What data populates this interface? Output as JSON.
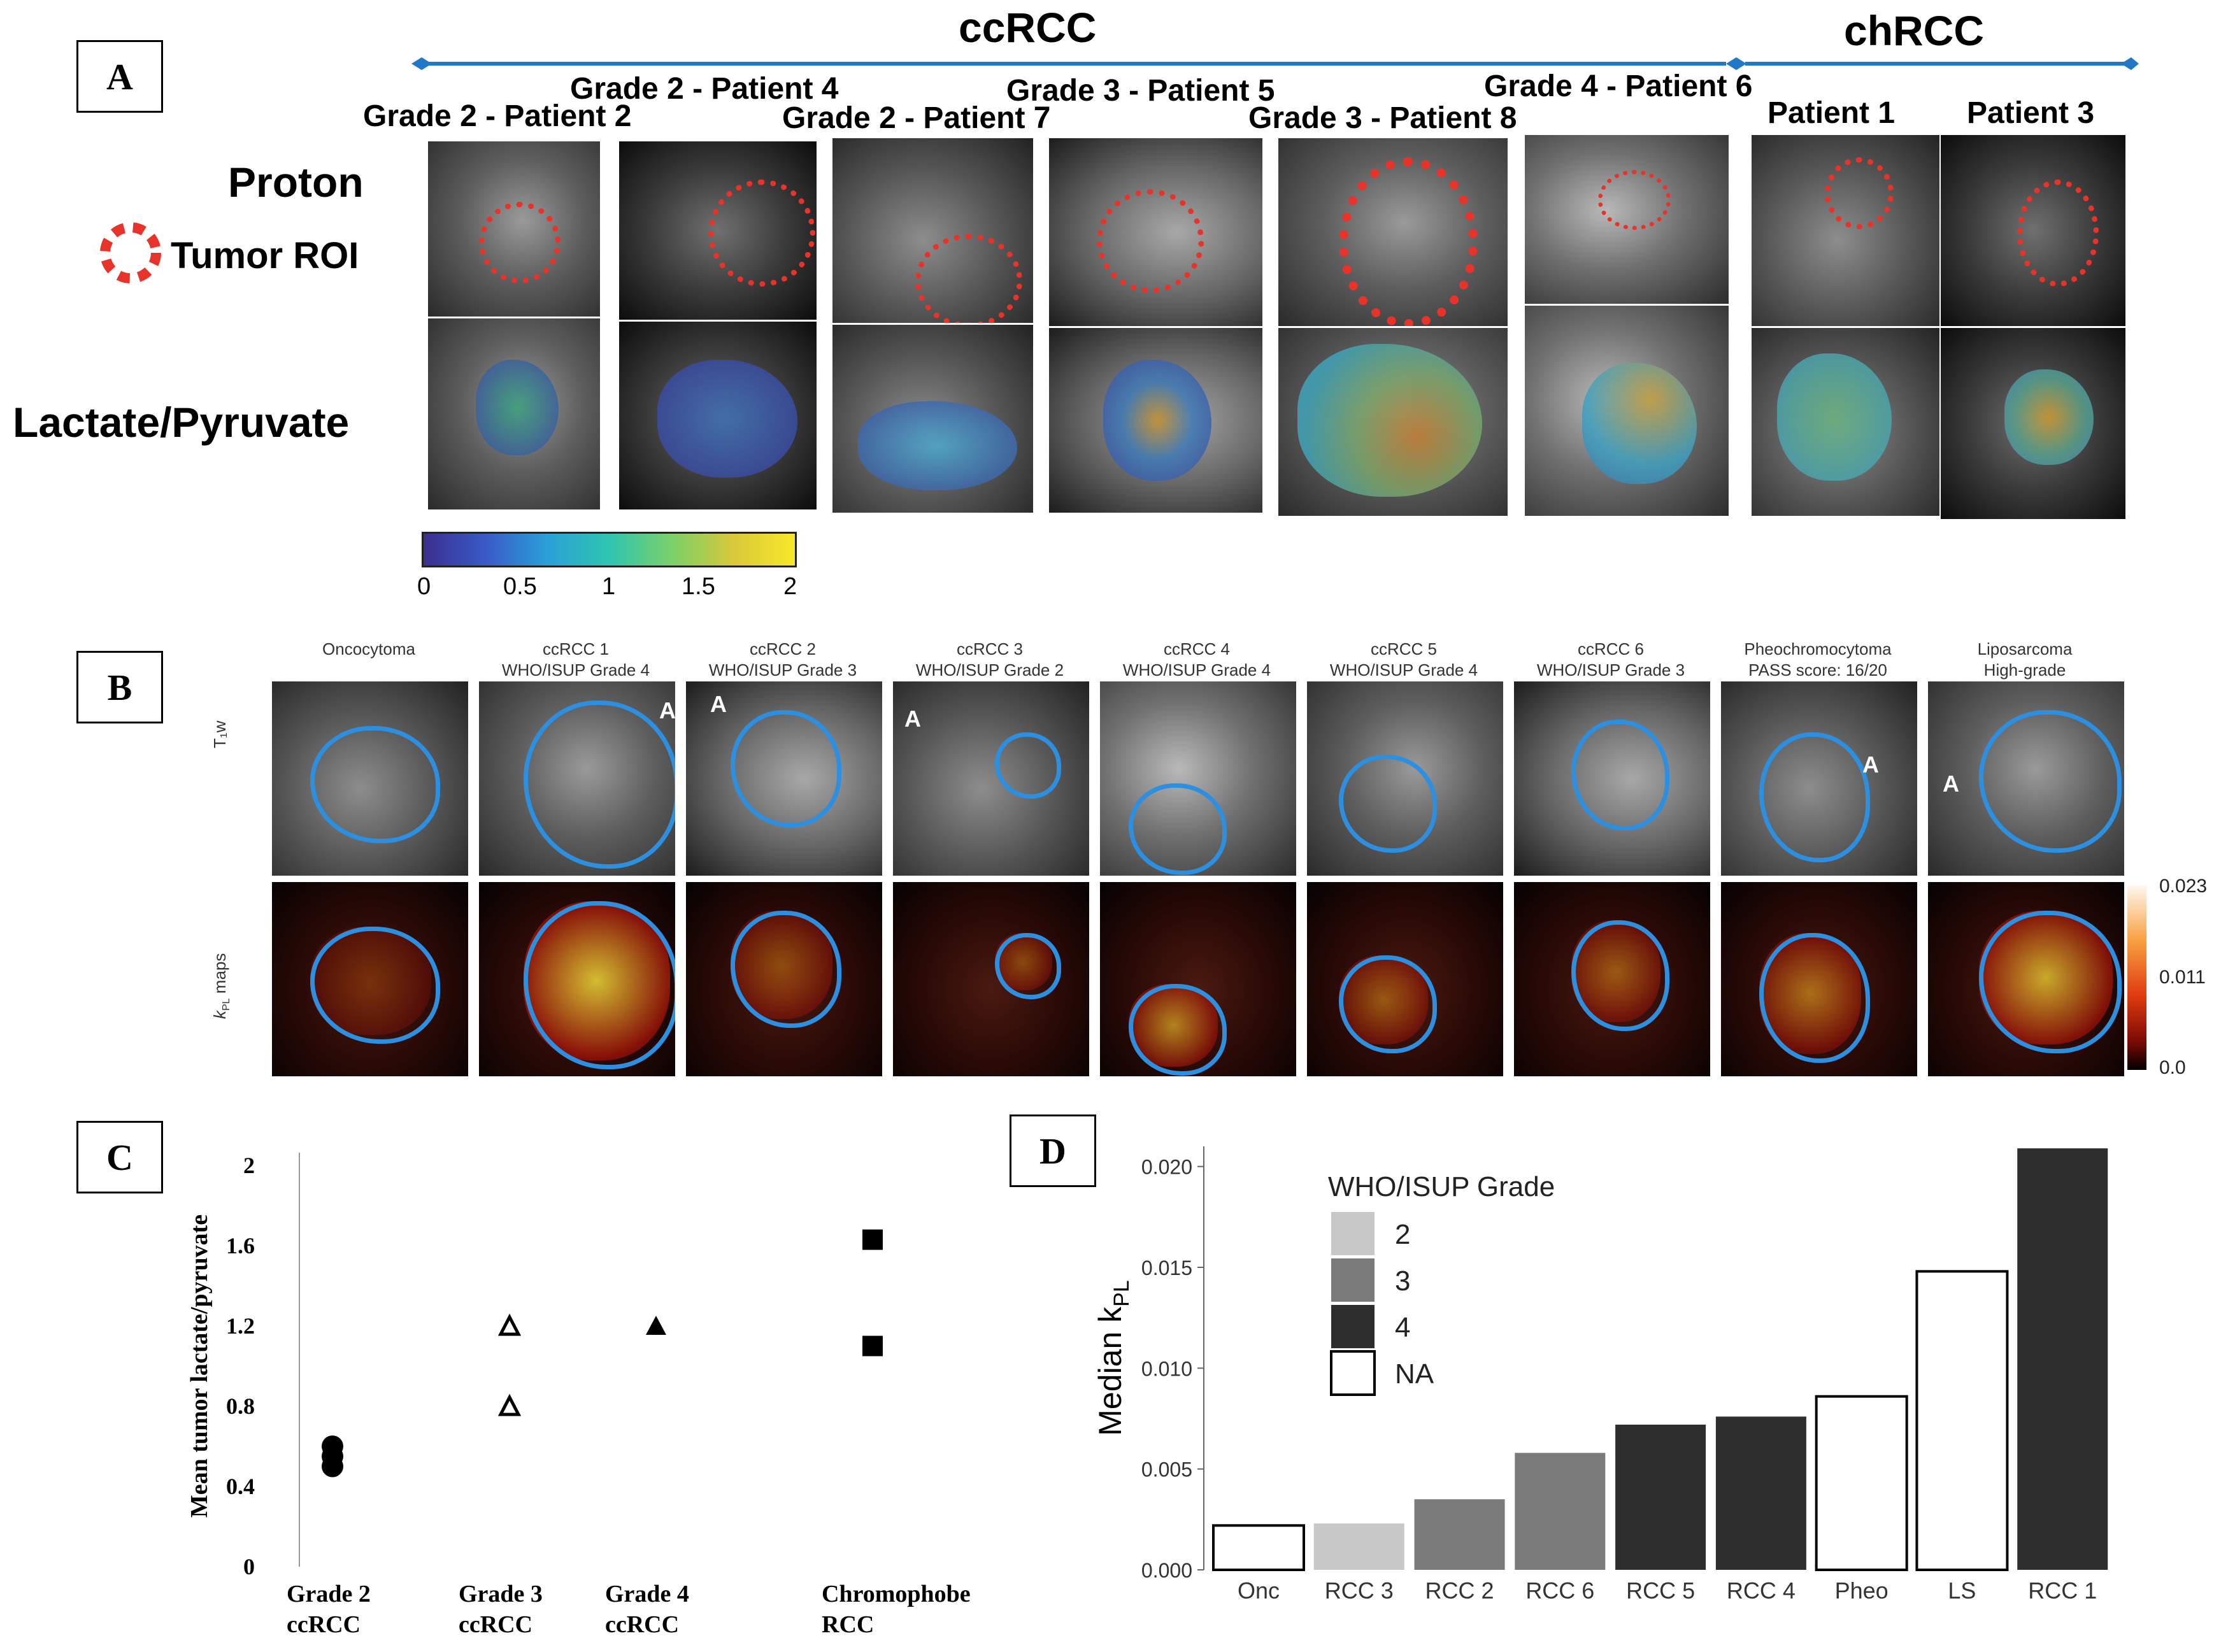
{
  "panels": [
    "A",
    "B",
    "C",
    "D"
  ],
  "panelA": {
    "group_ccrcc": "ccRCC",
    "group_chrcc": "chRCC",
    "row_proton": "Proton",
    "roi_legend": "Tumor ROI",
    "row_lp": "Lactate/Pyruvate",
    "titles": [
      "Grade 2 - Patient 2",
      "Grade 2 - Patient 4",
      "Grade 2 - Patient 7",
      "Grade 3 - Patient 5",
      "Grade 3 - Patient 8",
      "Grade 4 - Patient 6",
      "Patient 1",
      "Patient 3"
    ],
    "colorbar_ticks": [
      "0",
      "0.5",
      "1",
      "1.5",
      "2"
    ],
    "colors": {
      "arrow": "#1f78c8",
      "roi": "#e8332a"
    }
  },
  "panelB": {
    "columns": [
      {
        "title": "Oncocytoma",
        "sub": ""
      },
      {
        "title": "ccRCC 1",
        "sub": "WHO/ISUP Grade 4"
      },
      {
        "title": "ccRCC 2",
        "sub": "WHO/ISUP Grade 3"
      },
      {
        "title": "ccRCC 3",
        "sub": "WHO/ISUP Grade 2"
      },
      {
        "title": "ccRCC 4",
        "sub": "WHO/ISUP Grade 4"
      },
      {
        "title": "ccRCC 5",
        "sub": "WHO/ISUP Grade 4"
      },
      {
        "title": "ccRCC 6",
        "sub": "WHO/ISUP Grade 3"
      },
      {
        "title": "Pheochromocytoma",
        "sub": "PASS score: 16/20"
      },
      {
        "title": "Liposarcoma",
        "sub": "High-grade"
      }
    ],
    "row1": "T₁w",
    "row2_prefix": "k",
    "row2_sub": "PL",
    "row2_suffix": " maps",
    "marker": "A",
    "scale_ticks": [
      "0.023",
      "0.011",
      "0.0"
    ],
    "colors": {
      "contour": "#2d8fe0"
    }
  },
  "chart_data": [
    {
      "type": "scatter",
      "panel": "C",
      "xlabel": "",
      "ylabel": "Mean tumor lactate/pyruvate",
      "ylim": [
        0,
        2
      ],
      "yticks": [
        "0",
        "0.4",
        "0.8",
        "1.2",
        "1.6",
        "2"
      ],
      "categories": [
        {
          "line1": "Grade 2",
          "line2": "ccRCC"
        },
        {
          "line1": "Grade 3",
          "line2": "ccRCC"
        },
        {
          "line1": "Grade 4",
          "line2": "ccRCC"
        },
        {
          "line1": "Chromophobe",
          "line2": "RCC"
        }
      ],
      "series": [
        {
          "name": "Grade 2 ccRCC",
          "marker": "circle",
          "category": 0,
          "values": [
            0.5,
            0.55,
            0.6
          ]
        },
        {
          "name": "Grade 3 ccRCC",
          "marker": "open-triangle",
          "category": 1,
          "values": [
            0.8,
            1.2
          ]
        },
        {
          "name": "Grade 4 ccRCC",
          "marker": "filled-triangle",
          "category": 2,
          "values": [
            1.2
          ]
        },
        {
          "name": "Chromophobe RCC",
          "marker": "square",
          "category": 3,
          "values": [
            1.1,
            1.63
          ]
        }
      ]
    },
    {
      "type": "bar",
      "panel": "D",
      "ylabel_prefix": "Median k",
      "ylabel_sub": "PL",
      "ylim": [
        0,
        0.021
      ],
      "yticks": [
        "0.000",
        "0.005",
        "0.010",
        "0.015",
        "0.020"
      ],
      "categories": [
        "Onc",
        "RCC 3",
        "RCC 2",
        "RCC 6",
        "RCC 5",
        "RCC 4",
        "Pheo",
        "LS",
        "RCC 1"
      ],
      "values": [
        0.0022,
        0.0023,
        0.0035,
        0.0058,
        0.0072,
        0.0076,
        0.0086,
        0.0148,
        0.0209
      ],
      "grades": [
        "NA",
        "2",
        "3",
        "3",
        "4",
        "4",
        "NA",
        "NA",
        "4"
      ],
      "legend_title": "WHO/ISUP Grade",
      "legend": [
        {
          "label": "2",
          "color": "#c8c8c8"
        },
        {
          "label": "3",
          "color": "#7a7a7a"
        },
        {
          "label": "4",
          "color": "#2e2e2e"
        },
        {
          "label": "NA",
          "color": "#ffffff"
        }
      ]
    }
  ]
}
